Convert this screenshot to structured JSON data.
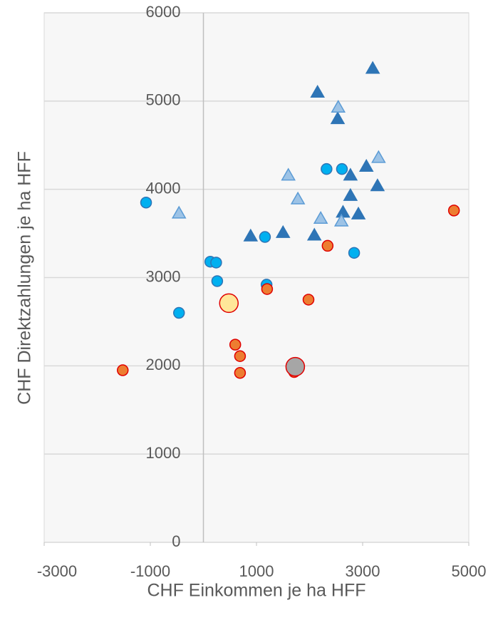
{
  "chart_data": {
    "type": "scatter",
    "xlabel": "CHF Einkommen je ha HFF",
    "ylabel": "CHF Direktzahlungen je ha HFF",
    "xlim": [
      -3000,
      5000
    ],
    "xticks": [
      -3000,
      -1000,
      1000,
      3000,
      5000
    ],
    "ylim": [
      0,
      6000
    ],
    "yticks": [
      0,
      1000,
      2000,
      3000,
      4000,
      5000,
      6000
    ],
    "grid": true,
    "series": [
      {
        "color": "#2e75b6",
        "edgecolor": "#2e75b6",
        "marker": "triangle",
        "x": [
          2150,
          3190,
          2530,
          3070,
          2770,
          3280,
          2770,
          2630,
          2920,
          890,
          1500,
          2090
        ],
        "values": [
          5100,
          5370,
          4800,
          4260,
          4160,
          4040,
          3930,
          3740,
          3720,
          3470,
          3510,
          3480
        ]
      },
      {
        "color": "#9dc3e6",
        "edgecolor": "#5b9bd5",
        "marker": "triangle",
        "x": [
          2540,
          3300,
          1600,
          1780,
          2210,
          2600,
          -460
        ],
        "values": [
          4930,
          4360,
          4160,
          3890,
          3670,
          3640,
          3730
        ]
      },
      {
        "color": "#00b0f0",
        "edgecolor": "#2e75b6",
        "marker": "circle",
        "x": [
          -1080,
          2320,
          2610,
          1160,
          2840,
          130,
          240,
          260,
          1190,
          -460
        ],
        "values": [
          3850,
          4230,
          4230,
          3460,
          3280,
          3180,
          3170,
          2960,
          2920,
          2600
        ]
      },
      {
        "color": "#ed7d31",
        "edgecolor": "#e00000",
        "marker": "circle",
        "x": [
          4720,
          2340,
          1200,
          1980,
          600,
          690,
          690,
          1710,
          -1520
        ],
        "values": [
          3760,
          3360,
          2870,
          2750,
          2240,
          2110,
          1920,
          1930,
          1950
        ]
      },
      {
        "color": "#ffe699",
        "edgecolor": "#e00000",
        "marker": "circle-large",
        "x": [
          480
        ],
        "values": [
          2710
        ]
      },
      {
        "color": "#a6a6a6",
        "edgecolor": "#e00000",
        "marker": "circle-large",
        "x": [
          1730
        ],
        "values": [
          1990
        ]
      }
    ]
  }
}
